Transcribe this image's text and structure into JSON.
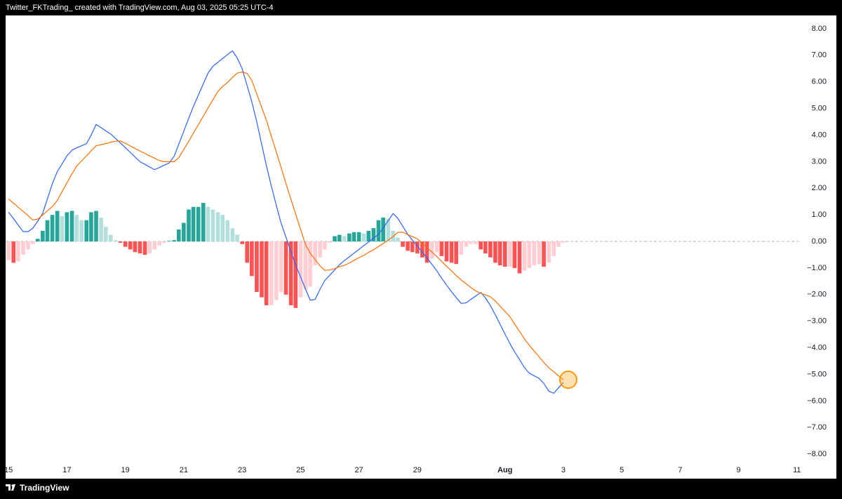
{
  "header": "Twitter_FKTrading_ created with TradingView.com, Aug 03, 2025 05:25 UTC-4",
  "footer": "TradingView",
  "chart_data": {
    "type": "combo",
    "x": [
      15,
      15.17,
      15.33,
      15.5,
      15.67,
      15.83,
      16,
      16.17,
      16.33,
      16.5,
      16.67,
      16.83,
      17,
      17.17,
      17.33,
      17.5,
      17.67,
      17.83,
      18,
      18.17,
      18.33,
      18.5,
      18.67,
      18.83,
      19,
      19.17,
      19.33,
      19.5,
      19.67,
      19.83,
      20,
      20.17,
      20.33,
      20.5,
      20.67,
      20.83,
      21,
      21.17,
      21.33,
      21.5,
      21.67,
      21.83,
      22,
      22.17,
      22.33,
      22.5,
      22.67,
      22.83,
      23,
      23.17,
      23.33,
      23.5,
      23.67,
      23.83,
      24,
      24.17,
      24.33,
      24.5,
      24.67,
      24.83,
      25,
      25.17,
      25.33,
      25.5,
      25.67,
      25.83,
      26,
      26.17,
      26.33,
      26.5,
      26.67,
      26.83,
      27,
      27.17,
      27.33,
      27.5,
      27.67,
      27.83,
      28,
      28.17,
      28.33,
      28.5,
      28.67,
      28.83,
      29,
      29.17,
      29.33,
      29.5,
      29.67,
      29.83,
      30,
      30.17,
      30.33,
      30.5,
      30.67,
      30.83,
      31,
      31.17,
      31.33,
      31.5,
      31.67,
      31.83,
      32,
      32.17,
      32.33,
      32.5,
      32.67,
      32.83,
      33,
      33.17,
      33.33,
      33.5,
      33.67,
      33.83,
      34
    ],
    "series": [
      {
        "type": "bar",
        "colors": {
          "grow_above": "#26a69a",
          "fall_above": "#b2dfdb",
          "grow_below": "#ffcdd2",
          "fall_below": "#ff5252"
        },
        "values": [
          -0.7,
          -0.8,
          -0.75,
          -0.5,
          -0.3,
          -0.1,
          0.1,
          0.4,
          0.8,
          1.0,
          1.15,
          0.95,
          1.1,
          1.15,
          1.0,
          0.8,
          0.8,
          1.1,
          1.15,
          0.9,
          0.55,
          0.25,
          0.05,
          -0.05,
          -0.2,
          -0.3,
          -0.4,
          -0.45,
          -0.5,
          -0.45,
          -0.3,
          -0.15,
          -0.05,
          0.02,
          0.05,
          0.45,
          0.7,
          1.2,
          1.3,
          1.3,
          1.45,
          1.3,
          1.2,
          1.1,
          1.0,
          0.8,
          0.5,
          0.25,
          -0.1,
          -0.8,
          -1.3,
          -1.9,
          -2.1,
          -2.4,
          -2.4,
          -2.2,
          -1.9,
          -2.0,
          -2.4,
          -2.5,
          -2.1,
          -1.8,
          -1.7,
          -0.9,
          -0.6,
          -0.3,
          -0.05,
          0.2,
          0.25,
          0.2,
          0.3,
          0.35,
          0.35,
          0.3,
          0.4,
          0.5,
          0.8,
          0.9,
          0.85,
          0.4,
          0.15,
          -0.2,
          -0.35,
          -0.4,
          -0.45,
          -0.6,
          -0.8,
          -0.65,
          -0.4,
          -0.55,
          -0.75,
          -0.8,
          -0.85,
          -0.5,
          -0.2,
          -0.1,
          -0.1,
          -0.3,
          -0.45,
          -0.6,
          -0.8,
          -0.9,
          -0.95,
          -0.95,
          -1.0,
          -1.2,
          -1.1,
          -1.0,
          -0.9,
          -0.85,
          -0.95,
          -0.8,
          -0.55,
          -0.2,
          -0.05
        ]
      },
      {
        "type": "line",
        "color": "#2962ff",
        "values": [
          1.1,
          0.86,
          0.62,
          0.37,
          0.37,
          0.5,
          0.76,
          1.06,
          1.6,
          2.17,
          2.63,
          2.91,
          3.22,
          3.43,
          3.52,
          3.6,
          3.68,
          4.0,
          4.4,
          4.28,
          4.16,
          4.04,
          3.87,
          3.7,
          3.53,
          3.35,
          3.18,
          3.0,
          2.9,
          2.8,
          2.7,
          2.78,
          2.87,
          2.95,
          3.2,
          3.66,
          4.14,
          4.63,
          5.08,
          5.5,
          5.93,
          6.33,
          6.59,
          6.74,
          6.88,
          7.03,
          7.17,
          6.9,
          6.5,
          5.86,
          5.26,
          4.5,
          3.65,
          2.85,
          2.08,
          1.36,
          0.7,
          0.16,
          -0.38,
          -0.88,
          -1.33,
          -1.79,
          -2.21,
          -2.18,
          -1.79,
          -1.47,
          -1.27,
          -1.07,
          -0.88,
          -0.72,
          -0.58,
          -0.44,
          -0.3,
          -0.15,
          -0.02,
          0.13,
          0.27,
          0.51,
          0.78,
          1.05,
          0.87,
          0.57,
          0.27,
          0.05,
          -0.17,
          -0.4,
          -0.62,
          -0.86,
          -1.11,
          -1.38,
          -1.64,
          -1.89,
          -2.11,
          -2.33,
          -2.31,
          -2.18,
          -2.05,
          -1.92,
          -2.12,
          -2.41,
          -2.76,
          -3.11,
          -3.48,
          -3.84,
          -4.15,
          -4.44,
          -4.75,
          -4.95,
          -5.05,
          -5.15,
          -5.34,
          -5.63,
          -5.71,
          -5.51,
          -5.3
        ]
      },
      {
        "type": "line",
        "color": "#ff6d00",
        "values": [
          1.6,
          1.44,
          1.29,
          1.13,
          0.97,
          0.81,
          0.84,
          1.0,
          1.15,
          1.31,
          1.54,
          1.87,
          2.2,
          2.54,
          2.83,
          3.03,
          3.22,
          3.41,
          3.6,
          3.64,
          3.68,
          3.73,
          3.77,
          3.78,
          3.69,
          3.59,
          3.5,
          3.4,
          3.31,
          3.22,
          3.13,
          3.04,
          3.0,
          3.0,
          3.0,
          3.15,
          3.46,
          3.77,
          4.07,
          4.39,
          4.71,
          5.01,
          5.33,
          5.64,
          5.83,
          5.98,
          6.17,
          6.33,
          6.37,
          6.32,
          6.06,
          5.55,
          5.04,
          4.56,
          3.96,
          3.36,
          2.79,
          2.18,
          1.59,
          1.04,
          0.46,
          -0.12,
          -0.44,
          -0.68,
          -0.92,
          -1.09,
          -1.07,
          -1.02,
          -0.95,
          -0.9,
          -0.81,
          -0.71,
          -0.61,
          -0.52,
          -0.41,
          -0.31,
          -0.19,
          -0.08,
          0.04,
          0.19,
          0.34,
          0.35,
          0.26,
          0.18,
          0.1,
          -0.07,
          -0.23,
          -0.4,
          -0.57,
          -0.75,
          -0.93,
          -1.11,
          -1.28,
          -1.45,
          -1.59,
          -1.73,
          -1.86,
          -1.95,
          -2.01,
          -2.08,
          -2.24,
          -2.43,
          -2.63,
          -2.83,
          -3.1,
          -3.38,
          -3.67,
          -3.9,
          -4.12,
          -4.34,
          -4.55,
          -4.75,
          -4.9,
          -5.05,
          -5.2
        ]
      }
    ],
    "xlim": [
      14.9,
      42.1
    ],
    "xticks": [
      15,
      17,
      19,
      21,
      23,
      25,
      27,
      29,
      {
        "value": 32,
        "label": "Aug"
      },
      {
        "value": 34,
        "label": "3"
      },
      {
        "value": 36,
        "label": "5"
      },
      {
        "value": 38,
        "label": "7"
      },
      {
        "value": 40,
        "label": "9"
      },
      {
        "value": 42,
        "label": "11"
      }
    ],
    "ylim": [
      -8.92,
      8.5
    ],
    "yticks": [
      {
        "value": 8,
        "label": "8.00"
      },
      {
        "value": 7,
        "label": "7.00"
      },
      {
        "value": 6,
        "label": "6.00"
      },
      {
        "value": 5,
        "label": "5.00"
      },
      {
        "value": 4,
        "label": "4.00"
      },
      {
        "value": 3,
        "label": "3.00"
      },
      {
        "value": 2,
        "label": "2.00"
      },
      {
        "value": 1,
        "label": "1.00"
      },
      {
        "value": 0,
        "label": "0.00"
      },
      {
        "value": -1,
        "label": "−1.00"
      },
      {
        "value": -2,
        "label": "−2.00"
      },
      {
        "value": -3,
        "label": "−3.00"
      },
      {
        "value": -4,
        "label": "−4.00"
      },
      {
        "value": -5,
        "label": "−5.00"
      },
      {
        "value": -6,
        "label": "−6.00"
      },
      {
        "value": -7,
        "label": "−7.00"
      },
      {
        "value": -8,
        "label": "−8.00"
      }
    ],
    "zero_line": true,
    "highlight_last_point": {
      "series": 2,
      "color": "#ff9800"
    }
  }
}
